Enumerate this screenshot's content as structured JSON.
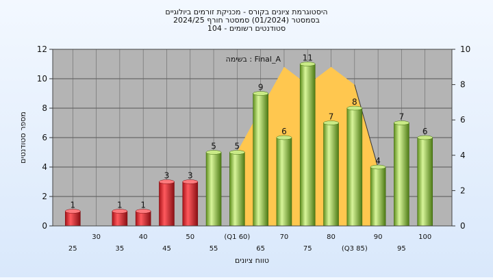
{
  "title_lines": [
    "היסטוגרמת ציונים בקורס - מכניקת זורמים ביולוגיים",
    "בסמסטר  (01/2024)  סמסטר חורף  2024/25",
    "סטודנטים רשומים - 104"
  ],
  "annotation": "בשימה : Final_A",
  "colors": {
    "plot_bg": "#b4b4b4",
    "bar_fail": "#e0282c",
    "bar_pass": "#8dc63f",
    "area_fill": "#ffc74f"
  },
  "chart_data": {
    "type": "bar",
    "xlabel": "טווח ציונים",
    "ylabel": "מספר סטודנטים",
    "ylim": [
      0,
      12
    ],
    "yticks": [
      0,
      2,
      4,
      6,
      8,
      10,
      12
    ],
    "y2lim": [
      0,
      10
    ],
    "y2ticks": [
      0,
      2,
      4,
      6,
      8,
      10
    ],
    "grid": true,
    "categories": [
      "25",
      "30",
      "35",
      "40",
      "45",
      "50",
      "55",
      "60",
      "65",
      "70",
      "75",
      "80",
      "85",
      "90",
      "95",
      "100"
    ],
    "category_labels": [
      "25",
      "30",
      "35",
      "40",
      "45",
      "50",
      "55",
      "(Q1 60)",
      "65",
      "70",
      "75",
      "80",
      "(Q3 85)",
      "90",
      "95",
      "100"
    ],
    "values": [
      1,
      0,
      1,
      1,
      3,
      3,
      5,
      5,
      9,
      6,
      11,
      7,
      8,
      4,
      7,
      6
    ],
    "bar_groups": [
      "fail",
      "none",
      "fail",
      "fail",
      "fail",
      "fail",
      "pass",
      "pass",
      "pass",
      "pass",
      "pass",
      "pass",
      "pass",
      "pass",
      "pass",
      "pass"
    ],
    "area": {
      "axis": "right",
      "x": [
        "60",
        "65",
        "70",
        "75",
        "80",
        "85",
        "90"
      ],
      "y": [
        4.2,
        6.6,
        9.0,
        8.0,
        9.0,
        8.0,
        3.3
      ]
    }
  }
}
